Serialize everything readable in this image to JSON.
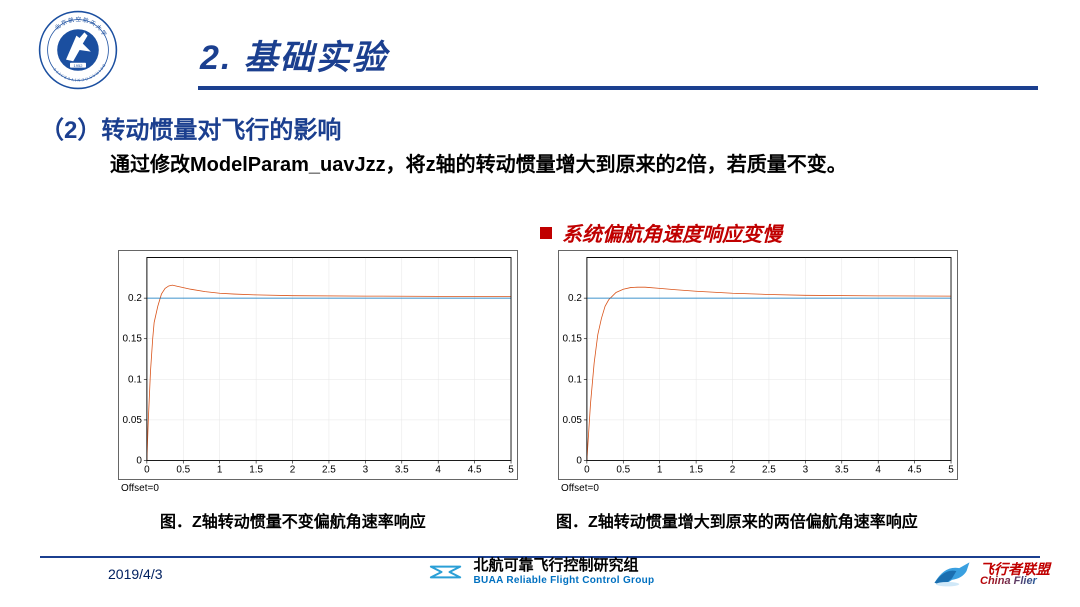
{
  "header": {
    "title": "2. 基础实验",
    "logo_outer_color": "#1b4fa0",
    "logo_inner_color": "#ffffff",
    "logo_year": "1952",
    "underline_color": "#1b3f8f"
  },
  "subsection": {
    "label": "（2）转动惯量对飞行的影响",
    "description": "通过修改ModelParam_uavJzz，将z轴的转动惯量增大到原来的2倍，若质量不变。"
  },
  "observation": {
    "text": "系统偏航角速度响应变慢",
    "bullet_color": "#c00000",
    "text_color": "#c00000"
  },
  "charts": {
    "left": {
      "type": "line",
      "curves": [
        {
          "color": "#d95319",
          "width": 0.8,
          "x": [
            0,
            0.02,
            0.05,
            0.08,
            0.1,
            0.15,
            0.2,
            0.25,
            0.3,
            0.35,
            0.4,
            0.5,
            0.6,
            0.8,
            1.0,
            1.2,
            1.5,
            2.0,
            3.0,
            4.0,
            5.0
          ],
          "y": [
            0,
            0.05,
            0.11,
            0.15,
            0.17,
            0.19,
            0.205,
            0.212,
            0.215,
            0.216,
            0.215,
            0.213,
            0.211,
            0.208,
            0.206,
            0.205,
            0.204,
            0.203,
            0.2025,
            0.2022,
            0.2022
          ]
        },
        {
          "color": "#0072bd",
          "width": 0.8,
          "x": [
            0,
            5
          ],
          "y": [
            0.2,
            0.2
          ]
        }
      ],
      "xlim": [
        0,
        5
      ],
      "ylim": [
        0,
        0.25
      ],
      "xticks": [
        0,
        0.5,
        1,
        1.5,
        2,
        2.5,
        3,
        3.5,
        4,
        4.5,
        5
      ],
      "yticks": [
        0,
        0.05,
        0.1,
        0.15,
        0.2
      ],
      "grid_color": "#e6e6e6",
      "axis_color": "#000000",
      "background_color": "#ffffff",
      "offset_label": "Offset=0",
      "caption": "图．Z轴转动惯量不变偏航角速率响应"
    },
    "right": {
      "type": "line",
      "curves": [
        {
          "color": "#d95319",
          "width": 0.8,
          "x": [
            0,
            0.05,
            0.1,
            0.15,
            0.2,
            0.25,
            0.3,
            0.4,
            0.5,
            0.6,
            0.7,
            0.8,
            1.0,
            1.2,
            1.5,
            2.0,
            2.5,
            3.0,
            4.0,
            5.0
          ],
          "y": [
            0,
            0.07,
            0.12,
            0.155,
            0.175,
            0.19,
            0.198,
            0.207,
            0.211,
            0.213,
            0.2135,
            0.2135,
            0.212,
            0.2105,
            0.2085,
            0.206,
            0.2045,
            0.2035,
            0.2028,
            0.2025
          ]
        },
        {
          "color": "#0072bd",
          "width": 0.8,
          "x": [
            0,
            5
          ],
          "y": [
            0.2,
            0.2
          ]
        }
      ],
      "xlim": [
        0,
        5
      ],
      "ylim": [
        0,
        0.25
      ],
      "xticks": [
        0,
        0.5,
        1,
        1.5,
        2,
        2.5,
        3,
        3.5,
        4,
        4.5,
        5
      ],
      "yticks": [
        0,
        0.05,
        0.1,
        0.15,
        0.2
      ],
      "grid_color": "#e6e6e6",
      "axis_color": "#000000",
      "background_color": "#ffffff",
      "offset_label": "Offset=0",
      "caption": "图．Z轴转动惯量增大到原来的两倍偏航角速率响应"
    }
  },
  "footer": {
    "date": "2019/4/3",
    "center_cn": "北航可靠飞行控制研究组",
    "center_en": "BUAA  Reliable Flight Control Group",
    "center_logo_color": "#2a9fd6",
    "right_cn": "飞行者联盟",
    "right_en": "China Flier",
    "line_color": "#1b3f8f"
  }
}
